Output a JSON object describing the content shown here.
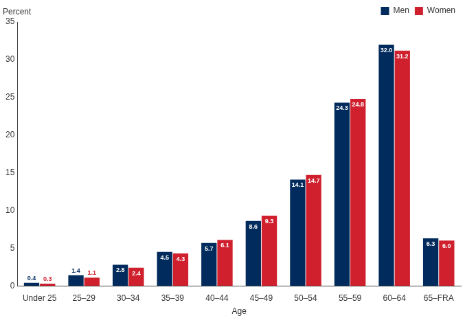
{
  "chart_data": {
    "type": "bar",
    "y_label": "Percent",
    "x_label": "Age",
    "categories": [
      "Under 25",
      "25–29",
      "30–34",
      "35–39",
      "40–44",
      "45–49",
      "50–54",
      "55–59",
      "60–64",
      "65–FRA"
    ],
    "series": [
      {
        "name": "Men",
        "color": "#002b5c",
        "values": [
          0.4,
          1.4,
          2.8,
          4.5,
          5.7,
          8.6,
          14.1,
          24.3,
          32.0,
          6.3
        ],
        "value_labels": [
          "0.4",
          "1.4",
          "2.8",
          "4.5",
          "5.7",
          "8.6",
          "14.1",
          "24.3",
          "32.0",
          "6.3"
        ]
      },
      {
        "name": "Women",
        "color": "#d0202e",
        "values": [
          0.3,
          1.1,
          2.4,
          4.3,
          6.1,
          9.3,
          14.7,
          24.8,
          31.2,
          6.0
        ],
        "value_labels": [
          "0.3",
          "1.1",
          "2.4",
          "4.3",
          "6.1",
          "9.3",
          "14.7",
          "24.8",
          "31.2",
          "6.0"
        ]
      }
    ],
    "ylim": [
      0,
      35
    ],
    "yticks": [
      0,
      5,
      10,
      15,
      20,
      25,
      30,
      35
    ],
    "grid": false,
    "legend": "top-right",
    "data_labels": true
  }
}
